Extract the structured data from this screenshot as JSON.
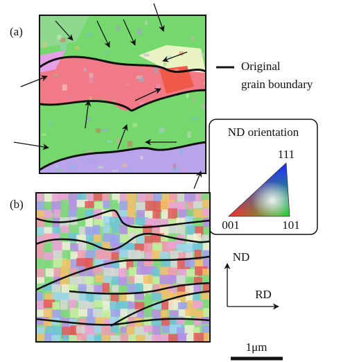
{
  "panels": [
    {
      "label": "(a)"
    },
    {
      "label": "(b)"
    }
  ],
  "boundary_legend": {
    "lines": [
      "Original",
      "grain boundary"
    ]
  },
  "orientation_key": {
    "title": "ND orientation",
    "corners": {
      "top": "111",
      "left": "001",
      "right": "101"
    }
  },
  "directions": {
    "vertical": "ND",
    "horizontal": "RD"
  },
  "scale_bar": {
    "label": "1μm"
  }
}
